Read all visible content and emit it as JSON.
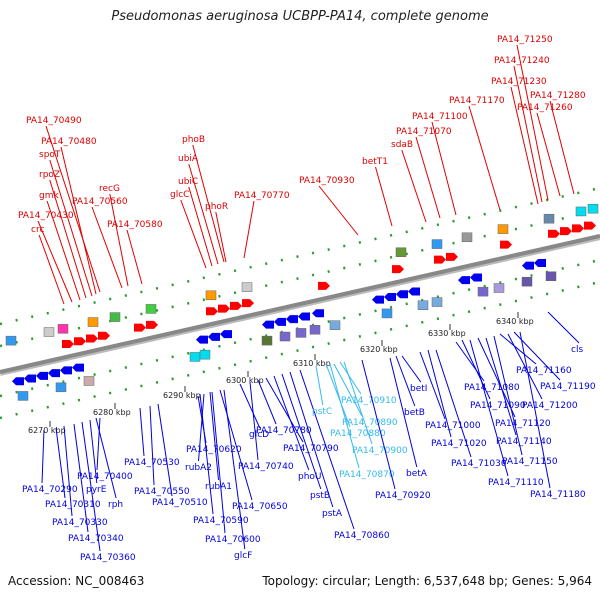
{
  "title": "Pseudomonas aeruginosa UCBPP-PA14, complete genome",
  "footer": {
    "accession": "Accession: NC_008463",
    "summary": "Topology: circular; Length: 6,537,648 bp; Genes: 5,964"
  },
  "colors": {
    "forward_label": "#e00000",
    "reverse_label": "#0000dd",
    "highlight_label": "#33bbee",
    "axis": "#888888",
    "forward_arrow": "#ff0000",
    "reverse_arrow": "#0000ee"
  },
  "scale_ticks": [
    "6270 kbp",
    "6280 kbp",
    "6290 kbp",
    "6300 kbp",
    "6310 kbp",
    "6320 kbp",
    "6330 kbp",
    "6340 kbp"
  ],
  "forward_genes": [
    "PA14_71250",
    "PA14_71240",
    "PA14_71230",
    "PA14_71280",
    "PA14_71170",
    "PA14_71260",
    "PA14_71100",
    "PA14_71070",
    "sdaB",
    "betT1",
    "PA14_70930",
    "phoB",
    "ubiA",
    "ubiC",
    "glcC",
    "phoR",
    "PA14_70770",
    "PA14_70490",
    "PA14_70480",
    "spoT",
    "rpoZ",
    "gmk",
    "PA14_70430",
    "crc",
    "recG",
    "PA14_70560",
    "PA14_70580"
  ],
  "reverse_genes": [
    "PA14_70290",
    "PA14_70310",
    "PA14_70330",
    "PA14_70340",
    "PA14_70360",
    "pyrE",
    "rph",
    "PA14_70400",
    "PA14_70530",
    "PA14_70550",
    "PA14_70510",
    "PA14_70620",
    "rubA2",
    "rubA1",
    "PA14_70650",
    "PA14_70590",
    "PA14_70600",
    "glcF",
    "glcD",
    "PA14_70780",
    "PA14_70740",
    "PA14_70790",
    "phoU",
    "pstB",
    "pstA",
    "PA14_70860",
    "pstC",
    "PA14_70910",
    "PA14_70880",
    "PA14_70890",
    "PA14_70900",
    "PA14_70870",
    "betI",
    "betB",
    "betA",
    "PA14_70920",
    "PA14_71000",
    "PA14_71020",
    "PA14_71030",
    "PA14_71080",
    "PA14_71090",
    "PA14_71110",
    "PA14_71120",
    "PA14_71140",
    "PA14_71150",
    "PA14_71160",
    "PA14_71190",
    "PA14_71200",
    "PA14_71180",
    "cls"
  ]
}
